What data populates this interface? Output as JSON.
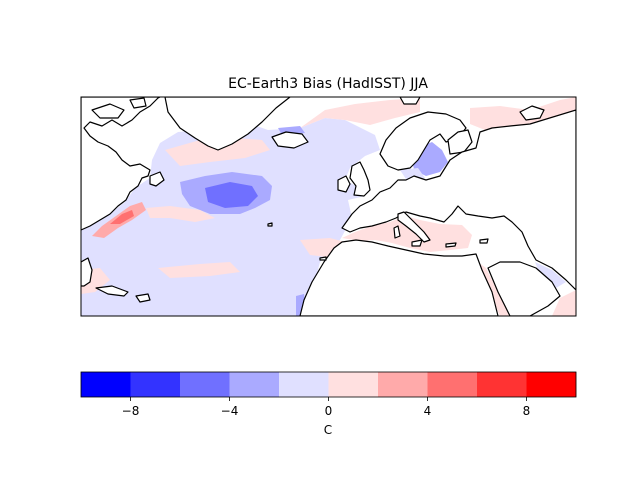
{
  "title": "EC-Earth3 Bias (HadISST) JJA",
  "colorbar": {
    "label": "C",
    "min": -10,
    "max": 10,
    "ticks": [
      -8,
      -4,
      0,
      4,
      8
    ],
    "tick_labels": [
      "−8",
      "−4",
      "0",
      "4",
      "8"
    ],
    "bins": [
      {
        "from": -10,
        "to": -8,
        "color": "#0000ff"
      },
      {
        "from": -8,
        "to": -6,
        "color": "#3333ff"
      },
      {
        "from": -6,
        "to": -4,
        "color": "#7070ff"
      },
      {
        "from": -4,
        "to": -2,
        "color": "#aaaaff"
      },
      {
        "from": -2,
        "to": 0,
        "color": "#e0e0ff"
      },
      {
        "from": 0,
        "to": 2,
        "color": "#ffe0e0"
      },
      {
        "from": 2,
        "to": 4,
        "color": "#ffaaaa"
      },
      {
        "from": 4,
        "to": 6,
        "color": "#ff7070"
      },
      {
        "from": 6,
        "to": 8,
        "color": "#ff3333"
      },
      {
        "from": 8,
        "to": 10,
        "color": "#ff0000"
      }
    ]
  },
  "colors": {
    "land": "#ffffff",
    "coastline": "#000000"
  }
}
